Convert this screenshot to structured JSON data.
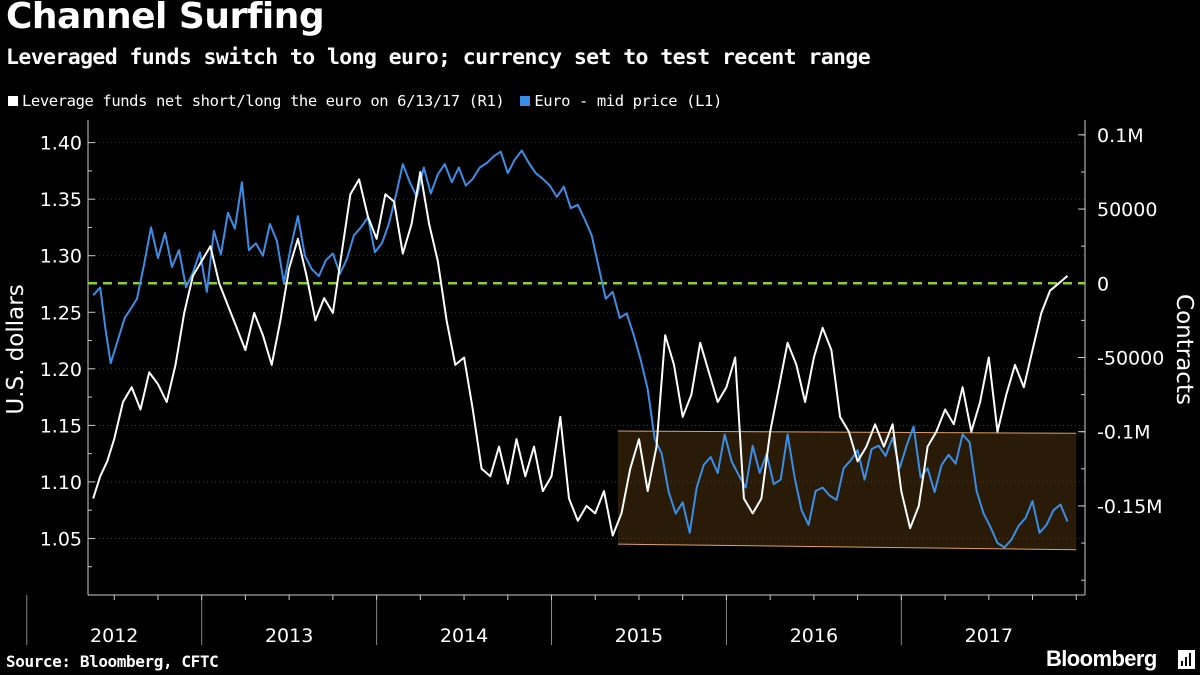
{
  "header": {
    "title": "Channel Surfing",
    "subtitle": "Leveraged funds switch to long euro; currency set to test recent range"
  },
  "legend": {
    "items": [
      {
        "label": "Leverage funds net short/long the euro on 6/13/17 (R1)",
        "color": "#ffffff"
      },
      {
        "label": "Euro - mid price (L1)",
        "color": "#3a8ee6"
      }
    ]
  },
  "footer": {
    "source": "Source: Bloomberg, CFTC",
    "brand": "Bloomberg"
  },
  "colors": {
    "background": "#000000",
    "euro_line": "#3a8ee6",
    "funds_line": "#ffffff",
    "zero_line": "#8ccf2a",
    "channel_fill": "#2a1a08",
    "channel_edge": "#e0a060"
  },
  "chart_data": {
    "type": "line",
    "left_axis": {
      "label": "U.S. dollars",
      "range": [
        1.0,
        1.42
      ],
      "ticks": [
        1.05,
        1.1,
        1.15,
        1.2,
        1.25,
        1.3,
        1.35,
        1.4
      ],
      "tick_labels": [
        "1.05",
        "1.10",
        "1.15",
        "1.20",
        "1.25",
        "1.30",
        "1.35",
        "1.40"
      ]
    },
    "right_axis": {
      "label": "Contracts",
      "range": [
        -210000,
        110000
      ],
      "ticks": [
        100000,
        50000,
        0,
        -50000,
        -100000,
        -150000
      ],
      "tick_labels": [
        "0.1M",
        "50000",
        "0",
        "-50000",
        "-0.1M",
        "-0.15M"
      ]
    },
    "x_axis": {
      "range": [
        2011.85,
        2017.55
      ],
      "year_boundaries": [
        2012.0,
        2013.0,
        2014.0,
        2015.0,
        2016.0,
        2017.0
      ],
      "year_labels": [
        {
          "label": "2012",
          "center": 2012.0
        },
        {
          "label": "2013",
          "center": 2013.0
        },
        {
          "label": "2014",
          "center": 2014.0
        },
        {
          "label": "2015",
          "center": 2015.0
        },
        {
          "label": "2016",
          "center": 2016.0
        },
        {
          "label": "2017",
          "center": 2017.0
        }
      ]
    },
    "reference_line": {
      "axis": "right",
      "value": 0,
      "style": "dashed"
    },
    "channel": {
      "axis": "left",
      "x_start": 2014.88,
      "x_end": 2017.5,
      "top_start": 1.145,
      "top_end": 1.143,
      "bottom_start": 1.045,
      "bottom_end": 1.04
    },
    "series": [
      {
        "name": "Euro - mid price (L1)",
        "axis": "left",
        "x": [
          2011.88,
          2011.92,
          2011.95,
          2011.98,
          2012.02,
          2012.06,
          2012.09,
          2012.13,
          2012.17,
          2012.21,
          2012.25,
          2012.29,
          2012.33,
          2012.37,
          2012.41,
          2012.45,
          2012.49,
          2012.53,
          2012.57,
          2012.61,
          2012.65,
          2012.69,
          2012.73,
          2012.77,
          2012.81,
          2012.85,
          2012.89,
          2012.93,
          2012.97,
          2013.01,
          2013.05,
          2013.09,
          2013.13,
          2013.17,
          2013.21,
          2013.25,
          2013.29,
          2013.33,
          2013.37,
          2013.41,
          2013.45,
          2013.49,
          2013.53,
          2013.57,
          2013.61,
          2013.65,
          2013.69,
          2013.73,
          2013.77,
          2013.81,
          2013.85,
          2013.89,
          2013.93,
          2013.97,
          2014.01,
          2014.05,
          2014.09,
          2014.13,
          2014.17,
          2014.21,
          2014.25,
          2014.29,
          2014.33,
          2014.37,
          2014.41,
          2014.45,
          2014.49,
          2014.53,
          2014.57,
          2014.61,
          2014.65,
          2014.69,
          2014.73,
          2014.77,
          2014.81,
          2014.85,
          2014.89,
          2014.93,
          2014.97,
          2015.01,
          2015.05,
          2015.09,
          2015.13,
          2015.17,
          2015.21,
          2015.25,
          2015.29,
          2015.33,
          2015.37,
          2015.41,
          2015.45,
          2015.49,
          2015.53,
          2015.57,
          2015.61,
          2015.65,
          2015.69,
          2015.73,
          2015.77,
          2015.81,
          2015.85,
          2015.89,
          2015.93,
          2015.97,
          2016.01,
          2016.05,
          2016.09,
          2016.13,
          2016.17,
          2016.21,
          2016.25,
          2016.29,
          2016.33,
          2016.37,
          2016.41,
          2016.45,
          2016.49,
          2016.53,
          2016.57,
          2016.61,
          2016.65,
          2016.69,
          2016.73,
          2016.77,
          2016.81,
          2016.85,
          2016.89,
          2016.93,
          2016.97,
          2017.01,
          2017.05,
          2017.09,
          2017.13,
          2017.17,
          2017.21,
          2017.25,
          2017.29,
          2017.33,
          2017.37,
          2017.41,
          2017.45
        ],
        "values": [
          1.265,
          1.272,
          1.235,
          1.205,
          1.225,
          1.245,
          1.252,
          1.262,
          1.292,
          1.325,
          1.298,
          1.32,
          1.29,
          1.305,
          1.272,
          1.285,
          1.303,
          1.268,
          1.322,
          1.301,
          1.338,
          1.324,
          1.365,
          1.305,
          1.311,
          1.3,
          1.328,
          1.313,
          1.276,
          1.308,
          1.335,
          1.3,
          1.288,
          1.282,
          1.296,
          1.302,
          1.284,
          1.297,
          1.318,
          1.325,
          1.334,
          1.303,
          1.311,
          1.328,
          1.353,
          1.381,
          1.365,
          1.352,
          1.378,
          1.355,
          1.372,
          1.381,
          1.365,
          1.378,
          1.362,
          1.368,
          1.378,
          1.382,
          1.388,
          1.392,
          1.373,
          1.385,
          1.393,
          1.382,
          1.373,
          1.368,
          1.362,
          1.352,
          1.361,
          1.342,
          1.345,
          1.332,
          1.318,
          1.29,
          1.262,
          1.268,
          1.245,
          1.249,
          1.23,
          1.208,
          1.182,
          1.138,
          1.125,
          1.091,
          1.072,
          1.082,
          1.055,
          1.095,
          1.115,
          1.122,
          1.108,
          1.142,
          1.118,
          1.106,
          1.095,
          1.132,
          1.108,
          1.125,
          1.098,
          1.102,
          1.142,
          1.104,
          1.075,
          1.062,
          1.092,
          1.095,
          1.088,
          1.084,
          1.112,
          1.119,
          1.128,
          1.102,
          1.129,
          1.132,
          1.123,
          1.139,
          1.112,
          1.132,
          1.149,
          1.104,
          1.112,
          1.091,
          1.115,
          1.124,
          1.116,
          1.142,
          1.135,
          1.092,
          1.072,
          1.06,
          1.046,
          1.042,
          1.049,
          1.061,
          1.068,
          1.083,
          1.055,
          1.062,
          1.075,
          1.08,
          1.065
        ]
      },
      {
        "name": "Leverage funds net short/long the euro on 6/13/17 (R1)",
        "axis": "right",
        "x": [
          2011.88,
          2011.92,
          2011.96,
          2012.0,
          2012.05,
          2012.1,
          2012.15,
          2012.2,
          2012.25,
          2012.3,
          2012.35,
          2012.4,
          2012.45,
          2012.5,
          2012.55,
          2012.6,
          2012.65,
          2012.7,
          2012.75,
          2012.8,
          2012.85,
          2012.9,
          2012.95,
          2013.0,
          2013.05,
          2013.1,
          2013.15,
          2013.2,
          2013.25,
          2013.3,
          2013.35,
          2013.4,
          2013.45,
          2013.5,
          2013.55,
          2013.6,
          2013.65,
          2013.7,
          2013.75,
          2013.8,
          2013.85,
          2013.9,
          2013.95,
          2014.0,
          2014.05,
          2014.1,
          2014.15,
          2014.2,
          2014.25,
          2014.3,
          2014.35,
          2014.4,
          2014.45,
          2014.5,
          2014.55,
          2014.6,
          2014.65,
          2014.7,
          2014.75,
          2014.8,
          2014.85,
          2014.9,
          2014.95,
          2015.0,
          2015.05,
          2015.1,
          2015.15,
          2015.2,
          2015.25,
          2015.3,
          2015.35,
          2015.4,
          2015.45,
          2015.5,
          2015.55,
          2015.6,
          2015.65,
          2015.7,
          2015.75,
          2015.8,
          2015.85,
          2015.9,
          2015.95,
          2016.0,
          2016.05,
          2016.1,
          2016.15,
          2016.2,
          2016.25,
          2016.3,
          2016.35,
          2016.4,
          2016.45,
          2016.5,
          2016.55,
          2016.6,
          2016.65,
          2016.7,
          2016.75,
          2016.8,
          2016.85,
          2016.9,
          2016.95,
          2017.0,
          2017.05,
          2017.1,
          2017.15,
          2017.2,
          2017.25,
          2017.3,
          2017.35,
          2017.4,
          2017.45
        ],
        "values": [
          -145000,
          -130000,
          -120000,
          -105000,
          -80000,
          -70000,
          -85000,
          -60000,
          -68000,
          -80000,
          -55000,
          -20000,
          5000,
          15000,
          25000,
          0,
          -15000,
          -30000,
          -45000,
          -20000,
          -35000,
          -55000,
          -25000,
          10000,
          30000,
          5000,
          -25000,
          -10000,
          -20000,
          20000,
          60000,
          70000,
          45000,
          30000,
          60000,
          55000,
          20000,
          40000,
          75000,
          40000,
          15000,
          -25000,
          -55000,
          -50000,
          -85000,
          -125000,
          -130000,
          -110000,
          -135000,
          -105000,
          -130000,
          -110000,
          -140000,
          -130000,
          -90000,
          -145000,
          -160000,
          -150000,
          -155000,
          -140000,
          -170000,
          -155000,
          -125000,
          -105000,
          -140000,
          -110000,
          -35000,
          -55000,
          -90000,
          -75000,
          -40000,
          -60000,
          -80000,
          -70000,
          -50000,
          -145000,
          -155000,
          -145000,
          -100000,
          -70000,
          -40000,
          -55000,
          -80000,
          -50000,
          -30000,
          -45000,
          -90000,
          -100000,
          -120000,
          -110000,
          -95000,
          -110000,
          -95000,
          -140000,
          -165000,
          -150000,
          -110000,
          -100000,
          -85000,
          -95000,
          -70000,
          -100000,
          -80000,
          -50000,
          -100000,
          -75000,
          -55000,
          -70000,
          -45000,
          -20000,
          -5000,
          0,
          5000
        ]
      }
    ]
  }
}
